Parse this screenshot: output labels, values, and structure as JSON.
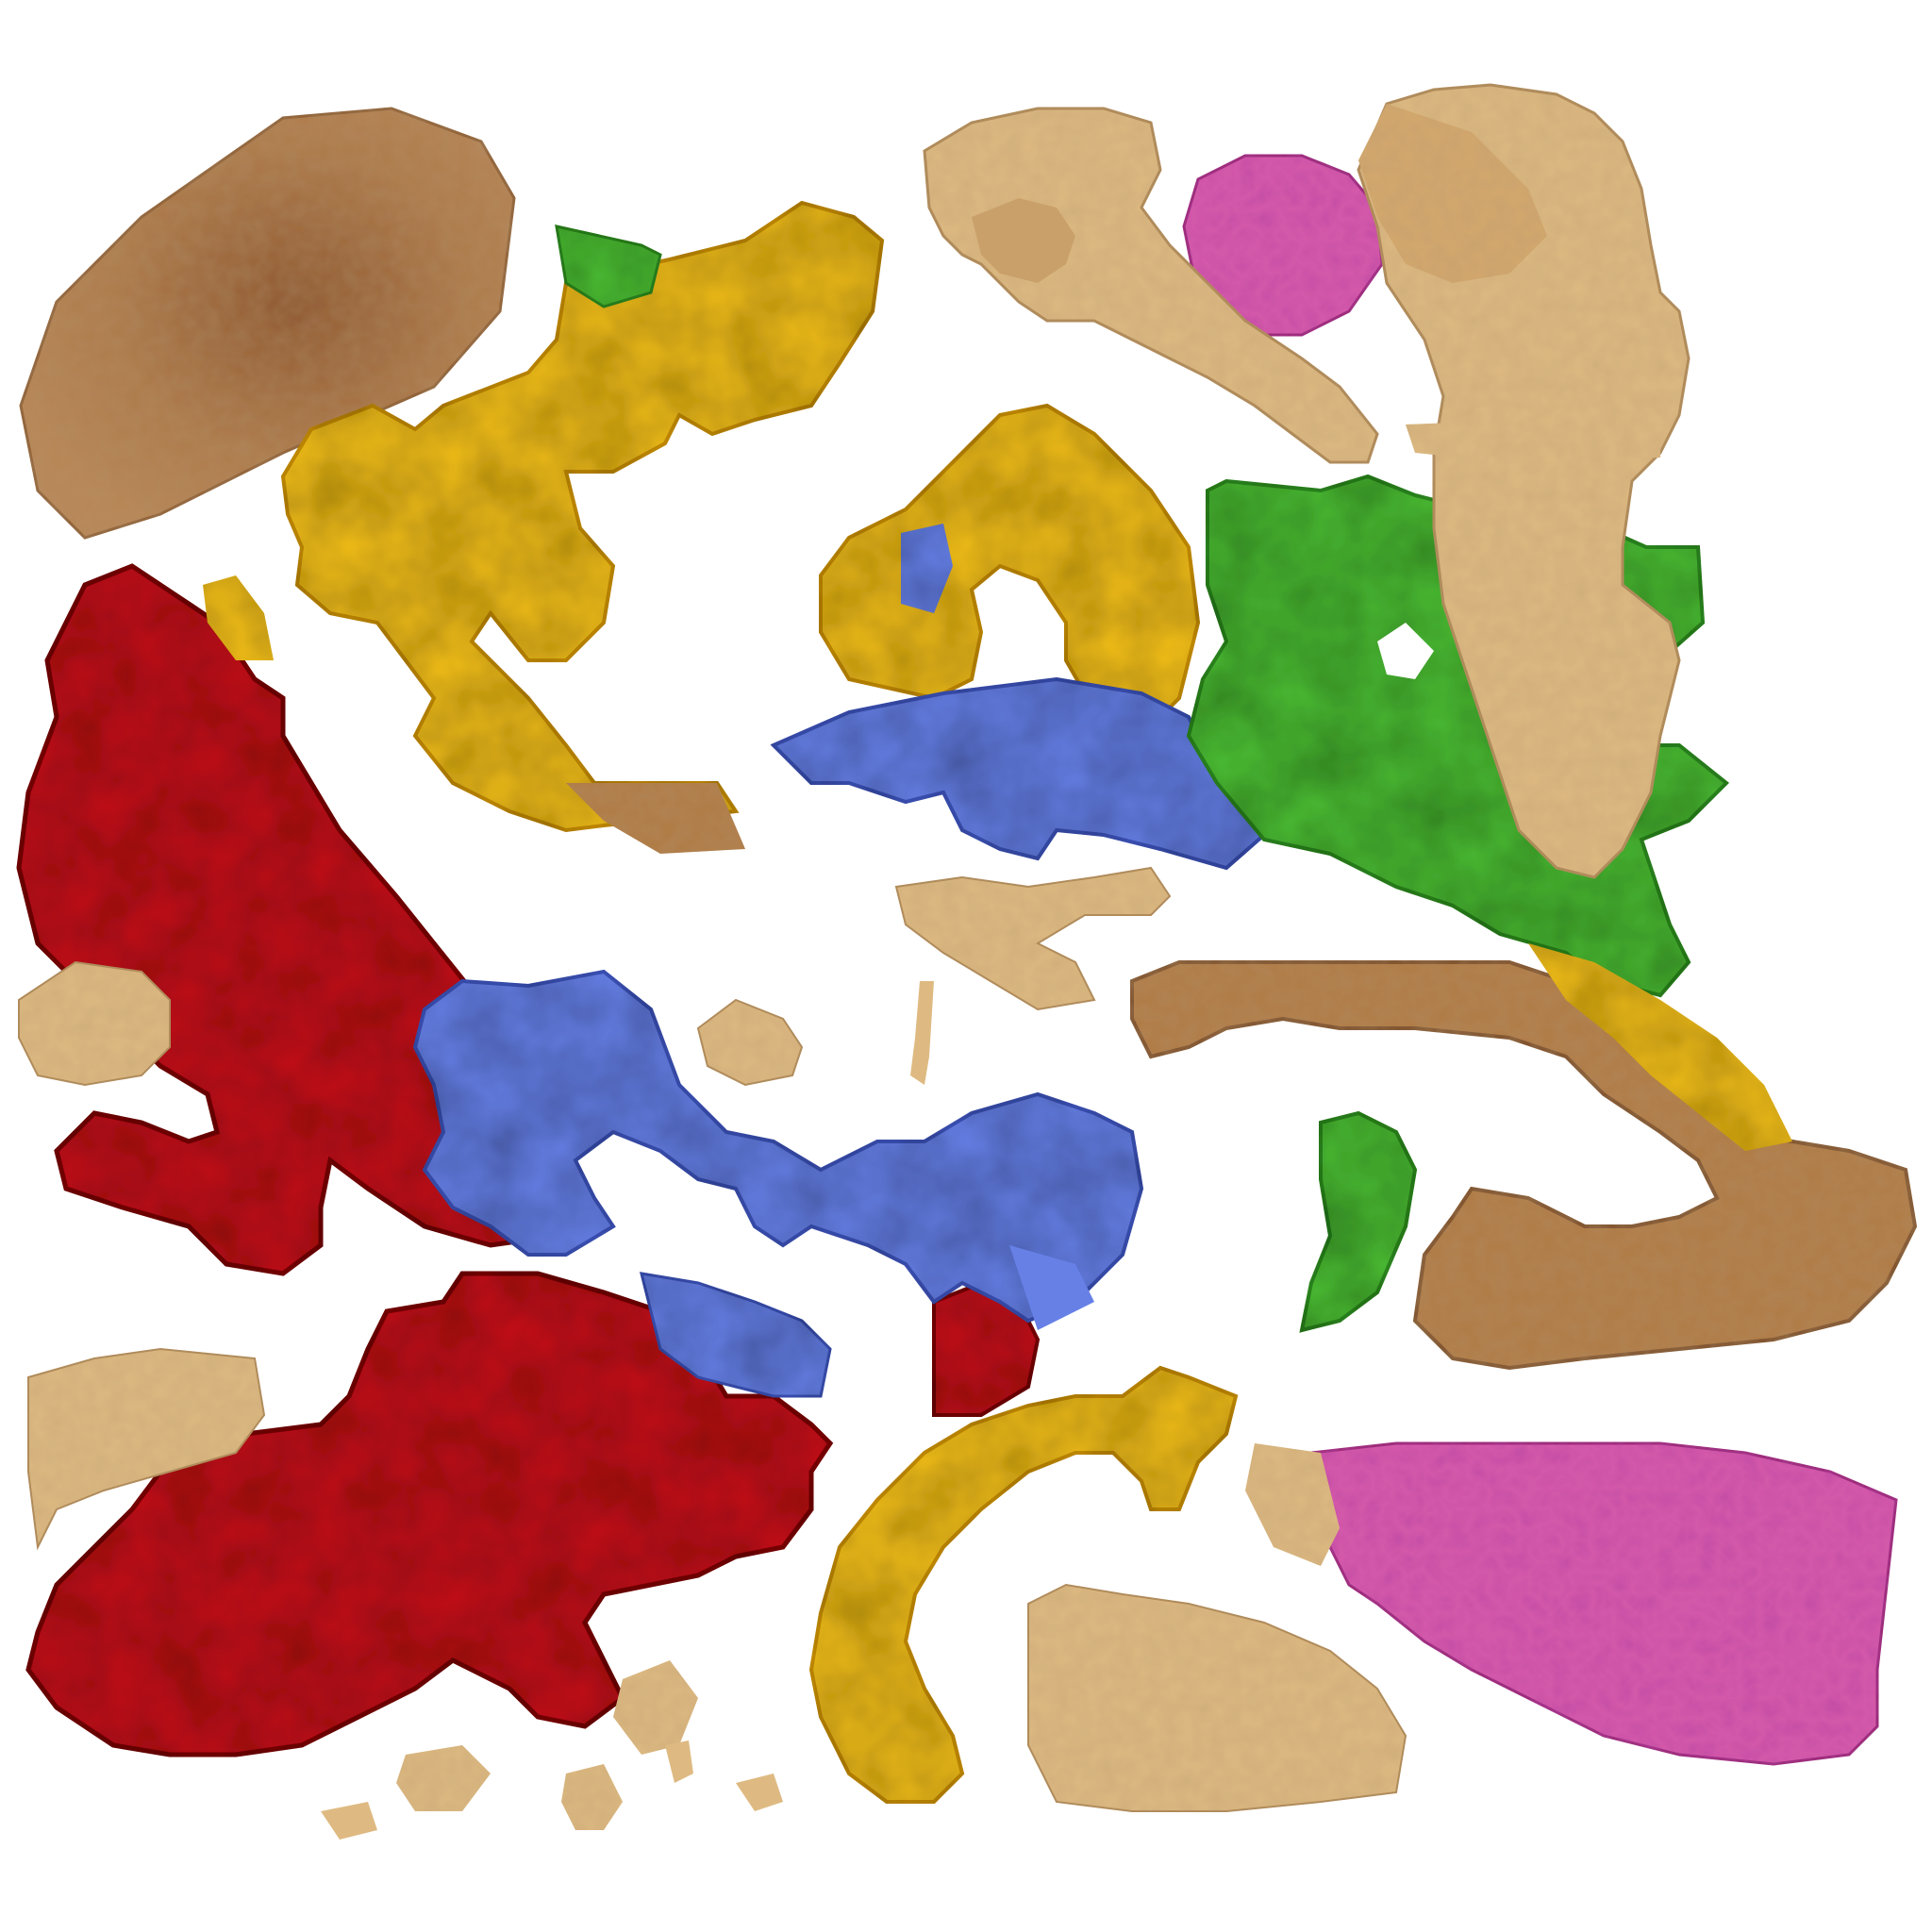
{
  "image": {
    "kind": "texture-atlas",
    "subject": "brain-model-uv-texture",
    "background": "#ffffff",
    "text": []
  },
  "palette": {
    "red-lobe": "#c4121a",
    "red-lobe-dark": "#7a0a10",
    "blue-lobe": "#6680e6",
    "blue-lobe-dark": "#3d52b8",
    "yellow-lobe": "#f0bd1c",
    "yellow-lobe-dark": "#c98f10",
    "green-lobe": "#4cbb34",
    "green-lobe-dark": "#2e8a20",
    "pink-tissue": "#d45aaa",
    "pink-tissue-dark": "#9c2f7a",
    "brown-tissue": "#b07a45",
    "brown-tissue-dark": "#7d4e28",
    "beige-tissue": "#deba82",
    "beige-tissue-dark": "#b08a58"
  },
  "pieces": [
    {
      "name": "brown-oval-piece",
      "color": "brown-tissue"
    },
    {
      "name": "yellow-upper-lobe-piece",
      "color": "yellow-lobe"
    },
    {
      "name": "green-upper-tip-piece",
      "color": "green-lobe"
    },
    {
      "name": "yellow-arch-piece",
      "color": "yellow-lobe"
    },
    {
      "name": "blue-band-piece",
      "color": "blue-lobe"
    },
    {
      "name": "green-right-lobe-piece",
      "color": "green-lobe"
    },
    {
      "name": "red-left-lobe-piece",
      "color": "red-lobe"
    },
    {
      "name": "red-lower-lobe-piece",
      "color": "red-lobe"
    },
    {
      "name": "blue-center-lobe-piece",
      "color": "blue-lobe"
    },
    {
      "name": "green-center-tip-piece",
      "color": "green-lobe"
    },
    {
      "name": "yellow-hook-piece",
      "color": "yellow-lobe"
    },
    {
      "name": "brown-curved-piece",
      "color": "brown-tissue"
    },
    {
      "name": "pink-round-piece",
      "color": "pink-tissue"
    },
    {
      "name": "pink-cerebellum-piece",
      "color": "pink-tissue"
    },
    {
      "name": "beige-tall-piece",
      "color": "beige-tissue"
    },
    {
      "name": "beige-brainstem-piece",
      "color": "beige-tissue"
    },
    {
      "name": "beige-small-pieces",
      "color": "beige-tissue"
    }
  ]
}
